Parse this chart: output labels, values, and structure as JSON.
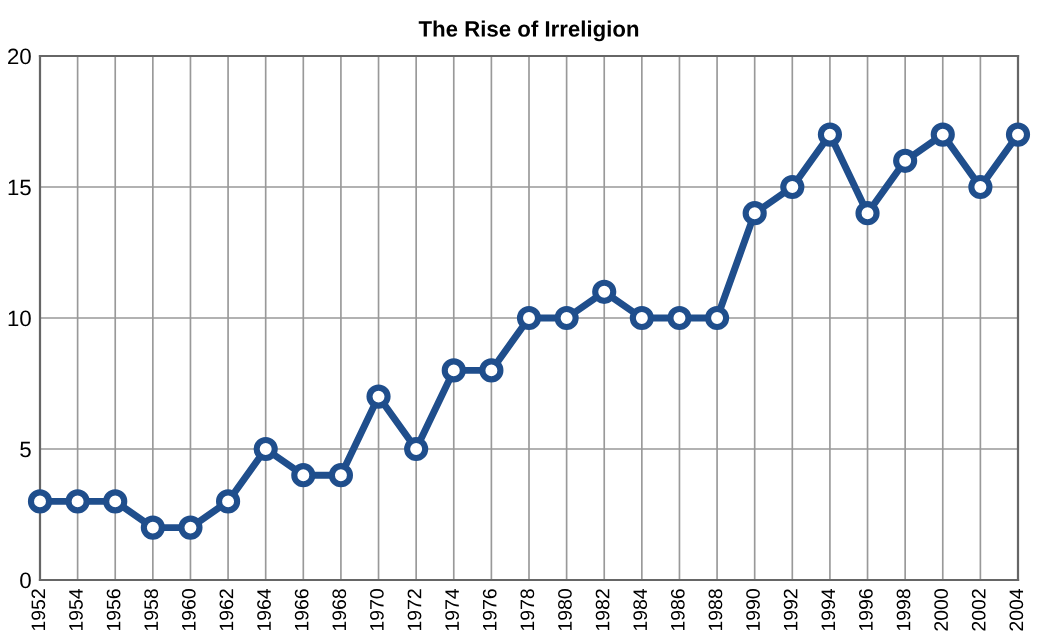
{
  "chart_data": {
    "type": "line",
    "title": "The Rise of Irreligion",
    "x": [
      1952,
      1954,
      1956,
      1958,
      1960,
      1962,
      1964,
      1966,
      1968,
      1970,
      1972,
      1974,
      1976,
      1978,
      1980,
      1982,
      1984,
      1986,
      1988,
      1990,
      1992,
      1994,
      1996,
      1998,
      2000,
      2002,
      2004
    ],
    "series": [
      {
        "color": "#1f4e8c",
        "values": [
          3,
          3,
          3,
          2,
          2,
          3,
          5,
          4,
          4,
          7,
          5,
          8,
          8,
          10,
          10,
          11,
          10,
          10,
          10,
          14,
          15,
          17,
          14,
          16,
          17,
          15,
          17
        ]
      }
    ],
    "xlim": [
      1952,
      2004
    ],
    "xticks": [
      1952,
      1954,
      1956,
      1958,
      1960,
      1962,
      1964,
      1966,
      1968,
      1970,
      1972,
      1974,
      1976,
      1978,
      1980,
      1982,
      1984,
      1986,
      1988,
      1990,
      1992,
      1994,
      1996,
      1998,
      2000,
      2002,
      2004
    ],
    "ylim": [
      0,
      20
    ],
    "yticks": [
      0,
      5,
      10,
      15,
      20
    ],
    "grid": true,
    "marker": "circle",
    "line_style": "solid"
  }
}
